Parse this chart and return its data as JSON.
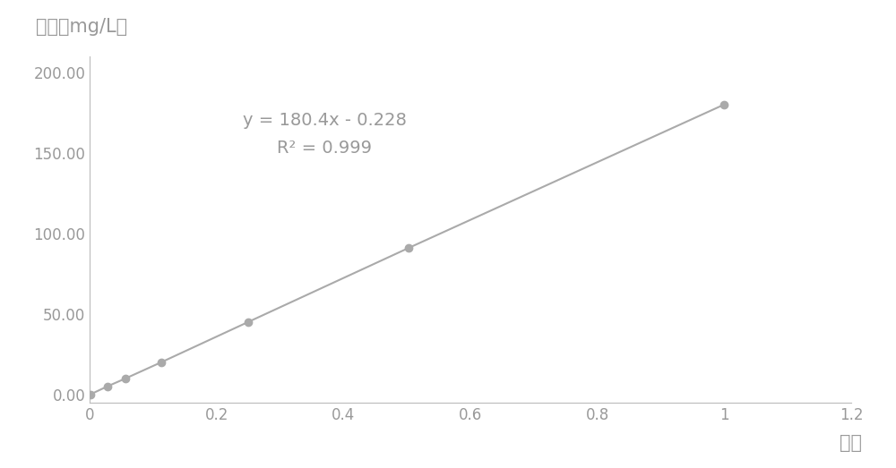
{
  "x_data": [
    0.001,
    0.028,
    0.057,
    0.113,
    0.25,
    0.503,
    1.0
  ],
  "y_data": [
    0.0,
    5.0,
    10.0,
    20.0,
    45.0,
    91.0,
    180.0
  ],
  "line_color": "#aaaaaa",
  "marker_color": "#aaaaaa",
  "equation_line1": "y = 180.4x - 0.228",
  "equation_line2": "R² = 0.999",
  "xlabel": "梯度",
  "ylabel": "浓度（mg/L）",
  "xlim": [
    0,
    1.2
  ],
  "ylim": [
    -5,
    210
  ],
  "xticks": [
    0,
    0.2,
    0.4,
    0.6,
    0.8,
    1.0,
    1.2
  ],
  "yticks": [
    0.0,
    50.0,
    100.0,
    150.0,
    200.0
  ],
  "ytick_labels": [
    "0.00",
    "50.00",
    "100.00",
    "150.00",
    "200.00"
  ],
  "text_color": "#999999",
  "background_color": "#ffffff",
  "axis_color": "#bbbbbb",
  "font_size_label": 15,
  "font_size_tick": 12,
  "font_size_annotation": 14,
  "line_width": 1.5,
  "marker_size": 6
}
